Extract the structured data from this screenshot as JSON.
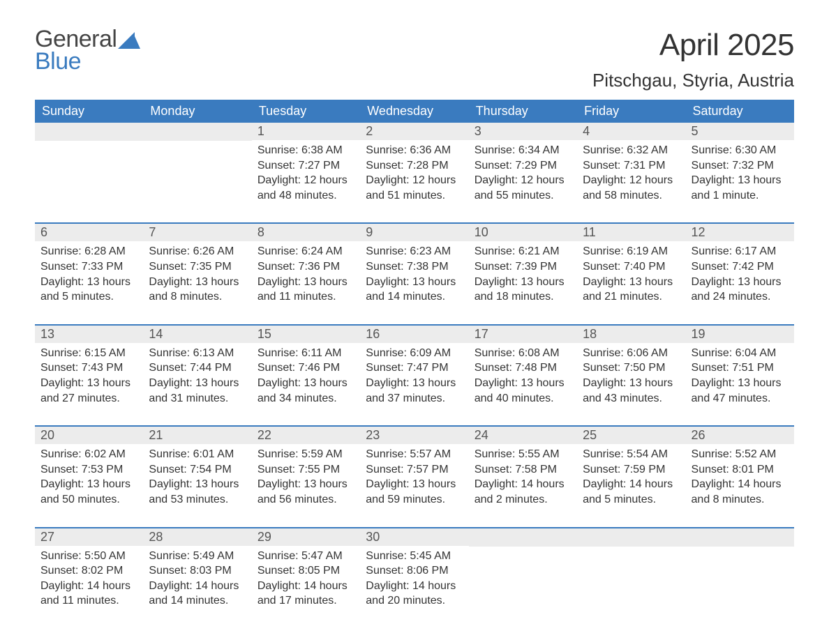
{
  "logo": {
    "word1": "General",
    "word2": "Blue"
  },
  "title": "April 2025",
  "location": "Pitschgau, Styria, Austria",
  "colors": {
    "header_bg": "#3a7bbf",
    "header_text": "#ffffff",
    "daynum_bg": "#ececec",
    "week_border": "#3a7bbf",
    "logo_blue": "#3a7bbf",
    "logo_gray": "#444444",
    "body_text": "#333333",
    "background": "#ffffff"
  },
  "weekdays": [
    "Sunday",
    "Monday",
    "Tuesday",
    "Wednesday",
    "Thursday",
    "Friday",
    "Saturday"
  ],
  "weeks": [
    [
      null,
      null,
      {
        "num": "1",
        "sunrise": "Sunrise: 6:38 AM",
        "sunset": "Sunset: 7:27 PM",
        "daylight1": "Daylight: 12 hours",
        "daylight2": "and 48 minutes."
      },
      {
        "num": "2",
        "sunrise": "Sunrise: 6:36 AM",
        "sunset": "Sunset: 7:28 PM",
        "daylight1": "Daylight: 12 hours",
        "daylight2": "and 51 minutes."
      },
      {
        "num": "3",
        "sunrise": "Sunrise: 6:34 AM",
        "sunset": "Sunset: 7:29 PM",
        "daylight1": "Daylight: 12 hours",
        "daylight2": "and 55 minutes."
      },
      {
        "num": "4",
        "sunrise": "Sunrise: 6:32 AM",
        "sunset": "Sunset: 7:31 PM",
        "daylight1": "Daylight: 12 hours",
        "daylight2": "and 58 minutes."
      },
      {
        "num": "5",
        "sunrise": "Sunrise: 6:30 AM",
        "sunset": "Sunset: 7:32 PM",
        "daylight1": "Daylight: 13 hours",
        "daylight2": "and 1 minute."
      }
    ],
    [
      {
        "num": "6",
        "sunrise": "Sunrise: 6:28 AM",
        "sunset": "Sunset: 7:33 PM",
        "daylight1": "Daylight: 13 hours",
        "daylight2": "and 5 minutes."
      },
      {
        "num": "7",
        "sunrise": "Sunrise: 6:26 AM",
        "sunset": "Sunset: 7:35 PM",
        "daylight1": "Daylight: 13 hours",
        "daylight2": "and 8 minutes."
      },
      {
        "num": "8",
        "sunrise": "Sunrise: 6:24 AM",
        "sunset": "Sunset: 7:36 PM",
        "daylight1": "Daylight: 13 hours",
        "daylight2": "and 11 minutes."
      },
      {
        "num": "9",
        "sunrise": "Sunrise: 6:23 AM",
        "sunset": "Sunset: 7:38 PM",
        "daylight1": "Daylight: 13 hours",
        "daylight2": "and 14 minutes."
      },
      {
        "num": "10",
        "sunrise": "Sunrise: 6:21 AM",
        "sunset": "Sunset: 7:39 PM",
        "daylight1": "Daylight: 13 hours",
        "daylight2": "and 18 minutes."
      },
      {
        "num": "11",
        "sunrise": "Sunrise: 6:19 AM",
        "sunset": "Sunset: 7:40 PM",
        "daylight1": "Daylight: 13 hours",
        "daylight2": "and 21 minutes."
      },
      {
        "num": "12",
        "sunrise": "Sunrise: 6:17 AM",
        "sunset": "Sunset: 7:42 PM",
        "daylight1": "Daylight: 13 hours",
        "daylight2": "and 24 minutes."
      }
    ],
    [
      {
        "num": "13",
        "sunrise": "Sunrise: 6:15 AM",
        "sunset": "Sunset: 7:43 PM",
        "daylight1": "Daylight: 13 hours",
        "daylight2": "and 27 minutes."
      },
      {
        "num": "14",
        "sunrise": "Sunrise: 6:13 AM",
        "sunset": "Sunset: 7:44 PM",
        "daylight1": "Daylight: 13 hours",
        "daylight2": "and 31 minutes."
      },
      {
        "num": "15",
        "sunrise": "Sunrise: 6:11 AM",
        "sunset": "Sunset: 7:46 PM",
        "daylight1": "Daylight: 13 hours",
        "daylight2": "and 34 minutes."
      },
      {
        "num": "16",
        "sunrise": "Sunrise: 6:09 AM",
        "sunset": "Sunset: 7:47 PM",
        "daylight1": "Daylight: 13 hours",
        "daylight2": "and 37 minutes."
      },
      {
        "num": "17",
        "sunrise": "Sunrise: 6:08 AM",
        "sunset": "Sunset: 7:48 PM",
        "daylight1": "Daylight: 13 hours",
        "daylight2": "and 40 minutes."
      },
      {
        "num": "18",
        "sunrise": "Sunrise: 6:06 AM",
        "sunset": "Sunset: 7:50 PM",
        "daylight1": "Daylight: 13 hours",
        "daylight2": "and 43 minutes."
      },
      {
        "num": "19",
        "sunrise": "Sunrise: 6:04 AM",
        "sunset": "Sunset: 7:51 PM",
        "daylight1": "Daylight: 13 hours",
        "daylight2": "and 47 minutes."
      }
    ],
    [
      {
        "num": "20",
        "sunrise": "Sunrise: 6:02 AM",
        "sunset": "Sunset: 7:53 PM",
        "daylight1": "Daylight: 13 hours",
        "daylight2": "and 50 minutes."
      },
      {
        "num": "21",
        "sunrise": "Sunrise: 6:01 AM",
        "sunset": "Sunset: 7:54 PM",
        "daylight1": "Daylight: 13 hours",
        "daylight2": "and 53 minutes."
      },
      {
        "num": "22",
        "sunrise": "Sunrise: 5:59 AM",
        "sunset": "Sunset: 7:55 PM",
        "daylight1": "Daylight: 13 hours",
        "daylight2": "and 56 minutes."
      },
      {
        "num": "23",
        "sunrise": "Sunrise: 5:57 AM",
        "sunset": "Sunset: 7:57 PM",
        "daylight1": "Daylight: 13 hours",
        "daylight2": "and 59 minutes."
      },
      {
        "num": "24",
        "sunrise": "Sunrise: 5:55 AM",
        "sunset": "Sunset: 7:58 PM",
        "daylight1": "Daylight: 14 hours",
        "daylight2": "and 2 minutes."
      },
      {
        "num": "25",
        "sunrise": "Sunrise: 5:54 AM",
        "sunset": "Sunset: 7:59 PM",
        "daylight1": "Daylight: 14 hours",
        "daylight2": "and 5 minutes."
      },
      {
        "num": "26",
        "sunrise": "Sunrise: 5:52 AM",
        "sunset": "Sunset: 8:01 PM",
        "daylight1": "Daylight: 14 hours",
        "daylight2": "and 8 minutes."
      }
    ],
    [
      {
        "num": "27",
        "sunrise": "Sunrise: 5:50 AM",
        "sunset": "Sunset: 8:02 PM",
        "daylight1": "Daylight: 14 hours",
        "daylight2": "and 11 minutes."
      },
      {
        "num": "28",
        "sunrise": "Sunrise: 5:49 AM",
        "sunset": "Sunset: 8:03 PM",
        "daylight1": "Daylight: 14 hours",
        "daylight2": "and 14 minutes."
      },
      {
        "num": "29",
        "sunrise": "Sunrise: 5:47 AM",
        "sunset": "Sunset: 8:05 PM",
        "daylight1": "Daylight: 14 hours",
        "daylight2": "and 17 minutes."
      },
      {
        "num": "30",
        "sunrise": "Sunrise: 5:45 AM",
        "sunset": "Sunset: 8:06 PM",
        "daylight1": "Daylight: 14 hours",
        "daylight2": "and 20 minutes."
      },
      null,
      null,
      null
    ]
  ]
}
